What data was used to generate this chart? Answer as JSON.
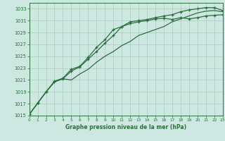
{
  "background_color": "#cce8e0",
  "grid_color": "#aaccbb",
  "line_color": "#2d6e3e",
  "title": "Graphe pression niveau de la mer (hPa)",
  "xlim": [
    0,
    23
  ],
  "ylim": [
    1015,
    1034
  ],
  "yticks": [
    1015,
    1017,
    1019,
    1021,
    1023,
    1025,
    1027,
    1029,
    1031,
    1033
  ],
  "xticks": [
    0,
    1,
    2,
    3,
    4,
    5,
    6,
    7,
    8,
    9,
    10,
    11,
    12,
    13,
    14,
    15,
    16,
    17,
    18,
    19,
    20,
    21,
    22,
    23
  ],
  "s1_x": [
    0,
    1,
    2,
    3,
    4,
    5,
    6,
    7,
    8,
    9,
    10,
    11,
    12,
    13,
    14,
    15,
    16,
    17,
    18,
    19,
    20,
    21,
    22,
    23
  ],
  "s1_y": [
    1015.2,
    1017.1,
    1019.0,
    1020.7,
    1021.2,
    1021.0,
    1022.0,
    1022.8,
    1024.0,
    1025.0,
    1025.8,
    1026.8,
    1027.5,
    1028.5,
    1029.0,
    1029.5,
    1030.0,
    1030.8,
    1031.3,
    1031.8,
    1032.3,
    1032.6,
    1032.7,
    1032.5
  ],
  "s2_x": [
    0,
    1,
    2,
    3,
    4,
    5,
    6,
    7,
    8,
    9,
    10,
    11,
    12,
    13,
    14,
    15,
    16,
    17,
    18,
    19,
    20,
    21,
    22,
    23
  ],
  "s2_y": [
    1015.2,
    1017.1,
    1019.0,
    1020.7,
    1021.2,
    1022.5,
    1023.2,
    1024.5,
    1025.8,
    1027.2,
    1028.5,
    1030.0,
    1030.5,
    1030.8,
    1031.0,
    1031.3,
    1031.4,
    1031.2,
    1031.5,
    1031.3,
    1031.5,
    1031.8,
    1031.9,
    1032.0
  ],
  "s3_x": [
    0,
    1,
    2,
    3,
    4,
    5,
    6,
    7,
    8,
    9,
    10,
    11,
    12,
    13,
    14,
    15,
    16,
    17,
    18,
    19,
    20,
    21,
    22,
    23
  ],
  "s3_y": [
    1015.2,
    1017.1,
    1019.0,
    1020.8,
    1021.3,
    1022.8,
    1023.3,
    1024.8,
    1026.5,
    1027.8,
    1029.5,
    1030.0,
    1030.8,
    1031.0,
    1031.2,
    1031.5,
    1031.8,
    1032.0,
    1032.5,
    1032.8,
    1033.0,
    1033.2,
    1033.2,
    1032.7
  ]
}
